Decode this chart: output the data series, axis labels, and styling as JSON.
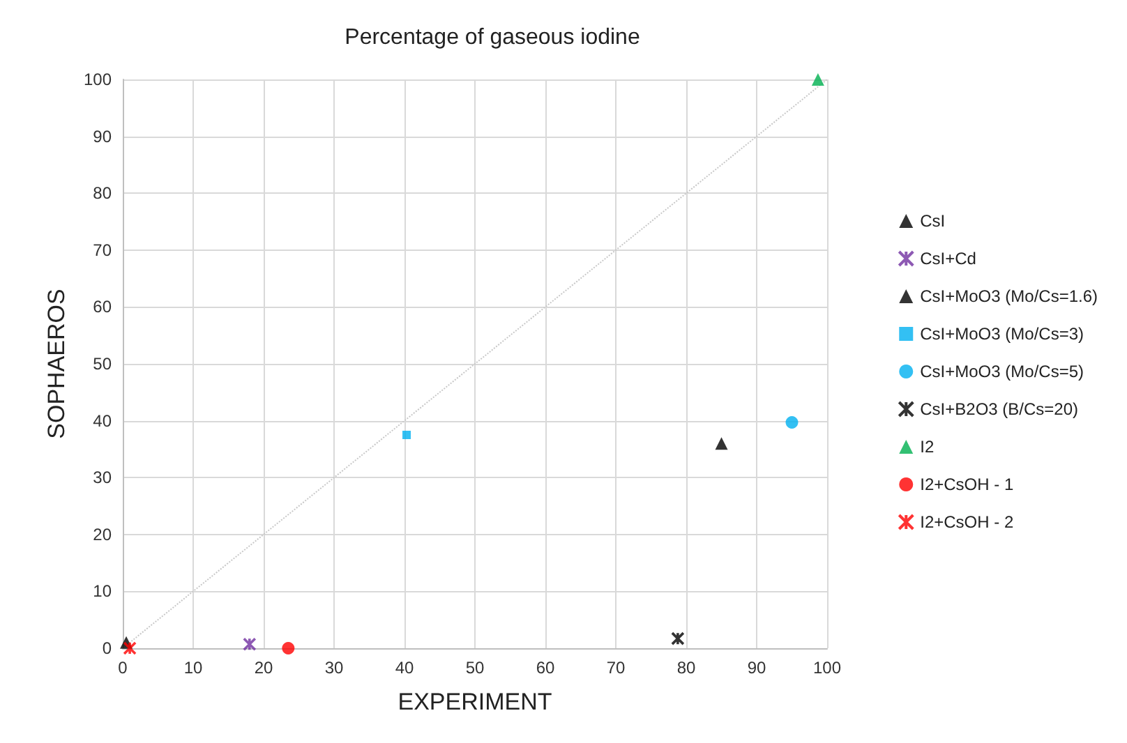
{
  "chart_data": {
    "type": "scatter",
    "title": "Percentage of gaseous iodine",
    "xlabel": "EXPERIMENT",
    "ylabel": "SOPHAEROS",
    "xlim": [
      0,
      100
    ],
    "ylim": [
      0,
      100
    ],
    "xticks": [
      0,
      10,
      20,
      30,
      40,
      50,
      60,
      70,
      80,
      90,
      100
    ],
    "yticks": [
      0,
      10,
      20,
      30,
      40,
      50,
      60,
      70,
      80,
      90,
      100
    ],
    "grid": true,
    "legend": "right",
    "series": [
      {
        "name": "CsI",
        "color": "#000000",
        "marker": "triangle",
        "x": [
          0.5
        ],
        "values": [
          1
        ]
      },
      {
        "name": "CsI+Cd",
        "color": "#7030a0",
        "marker": "cross",
        "x": [
          18
        ],
        "values": [
          0.7
        ]
      },
      {
        "name": "CsI+MoO3 (Mo/Cs=1.6)",
        "color": "#000000",
        "marker": "triangle",
        "x": [
          85
        ],
        "values": [
          36
        ]
      },
      {
        "name": "CsI+MoO3 (Mo/Cs=3)",
        "color": "#00b0f0",
        "marker": "square",
        "x": [
          40.3
        ],
        "values": [
          37.5
        ]
      },
      {
        "name": "CsI+MoO3 (Mo/Cs=5)",
        "color": "#00b0f0",
        "marker": "circle",
        "x": [
          95
        ],
        "values": [
          39.7
        ]
      },
      {
        "name": "CsI+B2O3 (B/Cs=20)",
        "color": "#000000",
        "marker": "cross",
        "x": [
          78.8
        ],
        "values": [
          1.7
        ]
      },
      {
        "name": "I2",
        "color": "#00b050",
        "marker": "triangle",
        "x": [
          98.7
        ],
        "values": [
          100
        ]
      },
      {
        "name": "I2+CsOH - 1",
        "color": "#ff0000",
        "marker": "circle",
        "x": [
          23.5
        ],
        "values": [
          0
        ]
      },
      {
        "name": "I2+CsOH - 2",
        "color": "#ff0000",
        "marker": "cross",
        "x": [
          1
        ],
        "values": [
          0
        ]
      },
      {
        "type": "line",
        "color": "#c8c8c8",
        "line_style": "dotted",
        "marker": "none",
        "x": [
          0,
          100
        ],
        "values": [
          0,
          100
        ]
      }
    ]
  }
}
